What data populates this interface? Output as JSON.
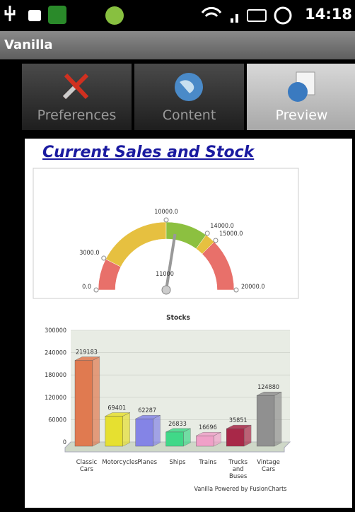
{
  "status_bar": {
    "time": "14:18"
  },
  "app_bar": {
    "title": "Vanilla"
  },
  "tabs": {
    "items": [
      "Preferences",
      "Content",
      "Preview"
    ],
    "active": 2
  },
  "content": {
    "title": "Current Sales and Stock",
    "gauge": {
      "type": "gauge",
      "lim": [
        0,
        20000
      ],
      "ticks": [
        {
          "value": 0,
          "label": "0.0"
        },
        {
          "value": 3000,
          "label": "3000.0"
        },
        {
          "value": 10000,
          "label": "10000.0"
        },
        {
          "value": 14000,
          "label": "14000.0"
        },
        {
          "value": 15000,
          "label": "15000.0"
        },
        {
          "value": 20000,
          "label": "20000.0"
        }
      ],
      "bands": [
        {
          "from": 0,
          "to": 3000,
          "color": "#e8706a"
        },
        {
          "from": 3000,
          "to": 10000,
          "color": "#e6c040"
        },
        {
          "from": 10000,
          "to": 14000,
          "color": "#8cc040"
        },
        {
          "from": 14000,
          "to": 15000,
          "color": "#e6c040"
        },
        {
          "from": 15000,
          "to": 20000,
          "color": "#e8706a"
        }
      ],
      "value": 11000
    },
    "bar_chart": {
      "type": "bar",
      "title": "Stocks",
      "categories": [
        "Classic Cars",
        "Motorcycles",
        "Planes",
        "Ships",
        "Trains",
        "Trucks and Buses",
        "Vintage Cars"
      ],
      "values": [
        219183,
        69401,
        62287,
        26833,
        16696,
        35851,
        124880
      ],
      "colors": [
        "#e07a50",
        "#e6e030",
        "#8484e6",
        "#40d888",
        "#f0a0c8",
        "#a82848",
        "#909090"
      ],
      "ylim": [
        0,
        300000
      ],
      "yticks": [
        0,
        60000,
        120000,
        180000,
        240000,
        300000
      ],
      "grid": true
    },
    "footer": "Vanilla  Powered by FusionCharts"
  }
}
